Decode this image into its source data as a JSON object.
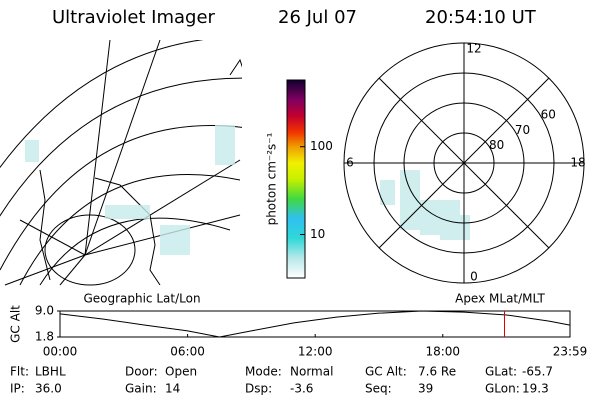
{
  "header": {
    "instrument": "Ultraviolet Imager",
    "date": "26 Jul 07",
    "time": "20:54:10 UT"
  },
  "map": {
    "title": "Geographic Lat/Lon"
  },
  "colorbar": {
    "label": "photon cm⁻²s⁻¹",
    "log": true,
    "lim": [
      3.2,
      575
    ],
    "ticks": [
      10,
      100
    ]
  },
  "polar": {
    "title": "Apex MLat/MLT",
    "rlim": [
      90,
      50
    ],
    "rings": [
      80,
      70,
      60
    ],
    "mlt": [
      12,
      18,
      6,
      0
    ]
  },
  "timeline": {
    "ylabel": "GC Alt",
    "ylim": [
      1.8,
      9.0
    ],
    "yticks": [
      {
        "value": 9,
        "label": "9.0"
      },
      1.8
    ],
    "xlim": [
      0,
      23.983
    ],
    "xticks": [
      {
        "value": 0,
        "label": "00:00"
      },
      {
        "value": 6,
        "label": "06:00"
      },
      {
        "value": 12,
        "label": "12:00"
      },
      {
        "value": 18,
        "label": "18:00"
      },
      {
        "value": 23.983,
        "label": "23:59"
      }
    ],
    "x": [
      0,
      2,
      4,
      6,
      7.5,
      9,
      11,
      13,
      15,
      17,
      19,
      21,
      23,
      23.983
    ],
    "values": [
      8.2,
      6.8,
      5.1,
      3.5,
      1.8,
      3.5,
      5.7,
      7.3,
      8.4,
      9.0,
      8.7,
      7.9,
      6.2,
      5.1
    ],
    "color": "#000000",
    "marker": 20.903,
    "marker_color": "#e00000"
  },
  "footer": {
    "rows": [
      [
        [
          "Flt:",
          "LBHL"
        ],
        [
          "Door:",
          "Open"
        ],
        [
          "Mode:",
          "Normal"
        ],
        [
          "GC Alt:",
          "7.6 Re"
        ],
        [
          "GLat:",
          "-65.7"
        ]
      ],
      [
        [
          "IP:",
          "36.0"
        ],
        [
          "Gain:",
          "14"
        ],
        [
          "Dsp:",
          "-3.6"
        ],
        [
          "Seq:",
          "39"
        ],
        [
          "GLon:",
          "19.3"
        ]
      ]
    ]
  }
}
